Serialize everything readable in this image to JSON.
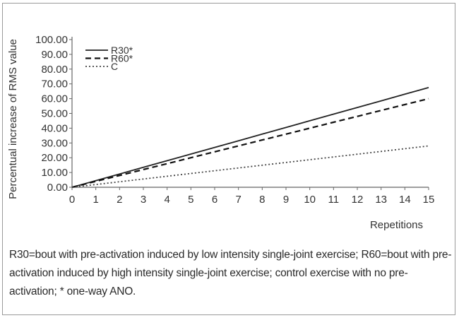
{
  "chart_data": {
    "type": "line",
    "ylabel": "Percentual increase of RMS value",
    "xlabel": "Repetitions",
    "x": [
      0,
      1,
      2,
      3,
      4,
      5,
      6,
      7,
      8,
      9,
      10,
      11,
      12,
      13,
      14,
      15
    ],
    "xticks": [
      "0",
      "1",
      "2",
      "3",
      "4",
      "5",
      "6",
      "7",
      "8",
      "9",
      "10",
      "11",
      "12",
      "13",
      "14",
      "15"
    ],
    "yticks": [
      "0.00",
      "10.00",
      "20.00",
      "30.00",
      "40.00",
      "50.00",
      "60.00",
      "70.00",
      "80.00",
      "90.00",
      "100.00"
    ],
    "xlim": [
      0,
      15
    ],
    "ylim": [
      0,
      100
    ],
    "grid": false,
    "legend_position": "top-left",
    "series": [
      {
        "name": "R30*",
        "style": "solid",
        "color": "#222222",
        "values": [
          0,
          4.5,
          9,
          13.5,
          18,
          22.5,
          27,
          31.5,
          36,
          40.5,
          45,
          49.5,
          54,
          58.5,
          63,
          67.5
        ]
      },
      {
        "name": "R60*",
        "style": "dashed",
        "color": "#111111",
        "values": [
          0,
          4,
          8,
          12,
          16,
          20,
          24,
          28,
          32,
          36,
          40,
          44,
          48,
          52,
          56,
          60
        ]
      },
      {
        "name": "C",
        "style": "dotted",
        "color": "#444444",
        "values": [
          0,
          1.87,
          3.73,
          5.6,
          7.47,
          9.33,
          11.2,
          13.07,
          14.93,
          16.8,
          18.67,
          20.53,
          22.4,
          24.27,
          26.13,
          28
        ]
      }
    ]
  },
  "caption": "R30=bout with pre-activation induced by low intensity single-joint exercise; R60=bout with pre-activation induced by high intensity single-joint exercise; control exercise with no pre-activation; * one-way ANO."
}
